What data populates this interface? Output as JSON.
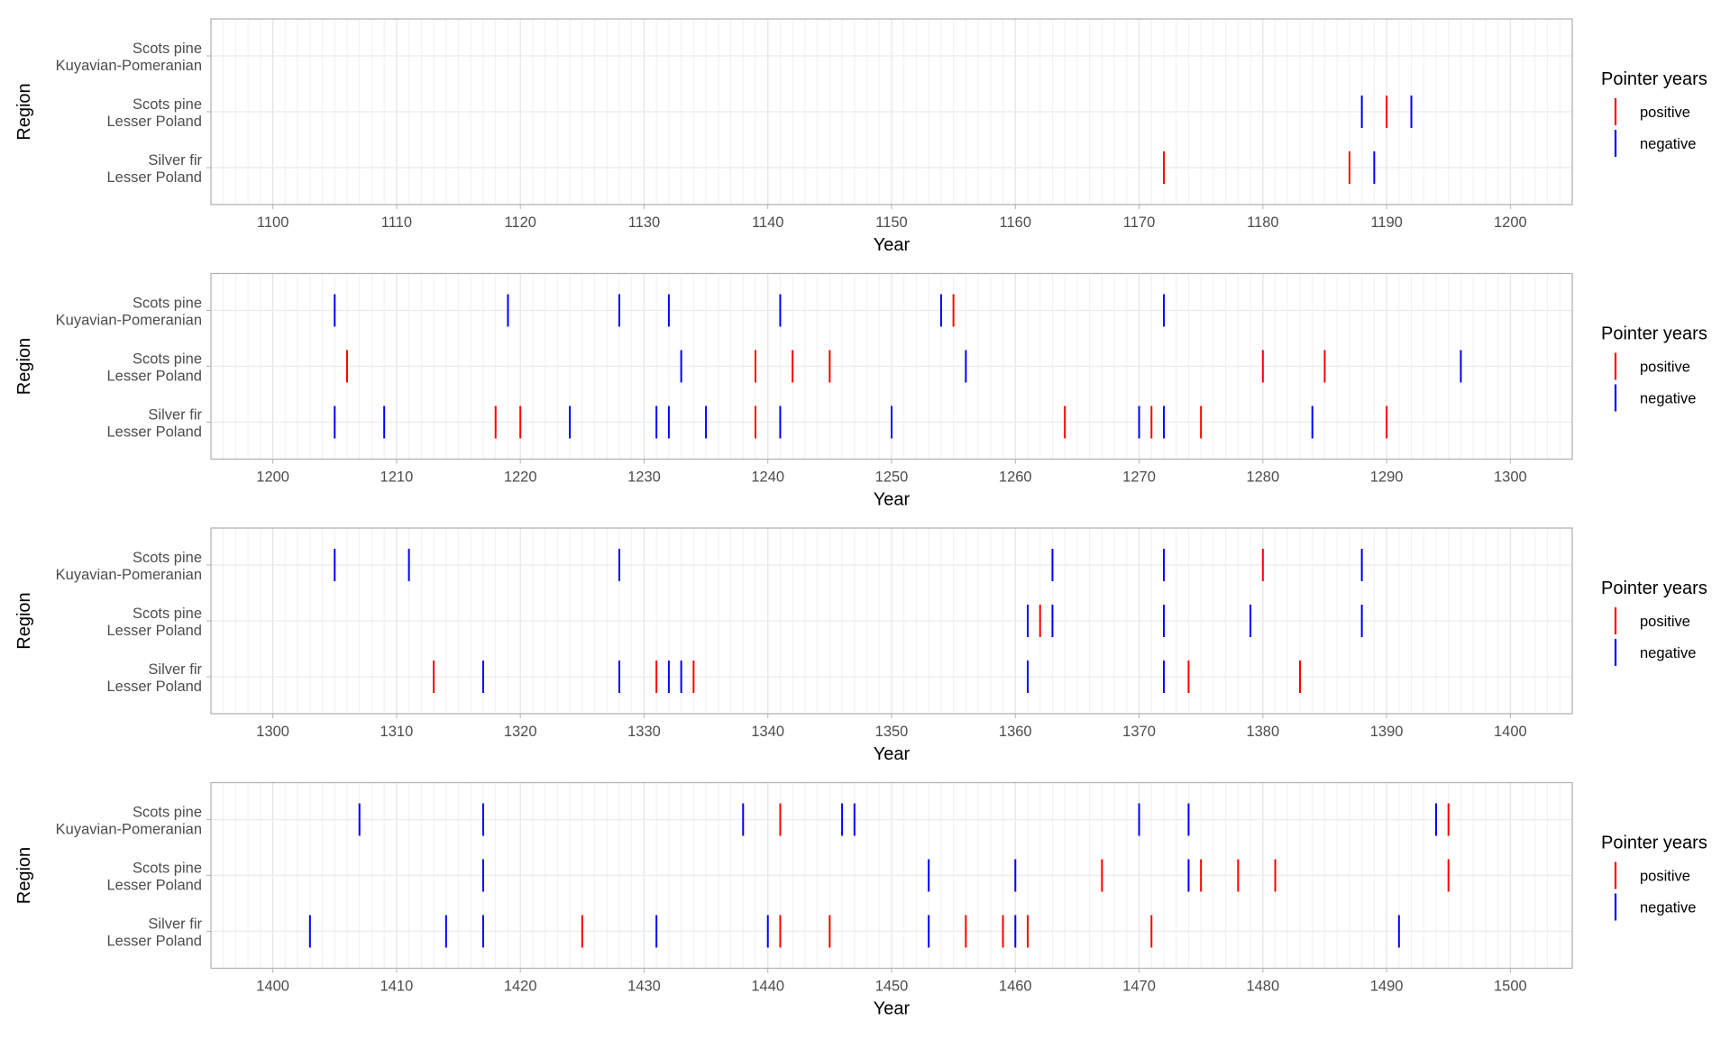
{
  "chart_data": [
    {
      "type": "scatter",
      "title": "",
      "xlabel": "Year",
      "ylabel": "Region",
      "xlim": [
        1095,
        1205
      ],
      "x_ticks": [
        1100,
        1110,
        1120,
        1130,
        1140,
        1150,
        1160,
        1170,
        1180,
        1190,
        1200
      ],
      "categories": [
        [
          "Scots pine",
          "Kuyavian-Pomeranian"
        ],
        [
          "Scots pine",
          "Lesser Poland"
        ],
        [
          "Silver fir",
          "Lesser Poland"
        ]
      ],
      "legend": {
        "title": "Pointer years",
        "position": "right",
        "entries": [
          "positive",
          "negative"
        ]
      },
      "series": [
        {
          "name": "positive",
          "color": "#ff0000",
          "points": [
            {
              "region": 1,
              "year": 1190
            },
            {
              "region": 2,
              "year": 1172
            },
            {
              "region": 2,
              "year": 1187
            }
          ]
        },
        {
          "name": "negative",
          "color": "#0000ff",
          "points": [
            {
              "region": 1,
              "year": 1188
            },
            {
              "region": 1,
              "year": 1192
            },
            {
              "region": 2,
              "year": 1189
            }
          ]
        }
      ]
    },
    {
      "type": "scatter",
      "title": "",
      "xlabel": "Year",
      "ylabel": "Region",
      "xlim": [
        1195,
        1305
      ],
      "x_ticks": [
        1200,
        1210,
        1220,
        1230,
        1240,
        1250,
        1260,
        1270,
        1280,
        1290,
        1300
      ],
      "categories": [
        [
          "Scots pine",
          "Kuyavian-Pomeranian"
        ],
        [
          "Scots pine",
          "Lesser Poland"
        ],
        [
          "Silver fir",
          "Lesser Poland"
        ]
      ],
      "legend": {
        "title": "Pointer years",
        "position": "right",
        "entries": [
          "positive",
          "negative"
        ]
      },
      "series": [
        {
          "name": "positive",
          "color": "#ff0000",
          "points": [
            {
              "region": 0,
              "year": 1255
            },
            {
              "region": 1,
              "year": 1206
            },
            {
              "region": 1,
              "year": 1239
            },
            {
              "region": 1,
              "year": 1242
            },
            {
              "region": 1,
              "year": 1245
            },
            {
              "region": 1,
              "year": 1280
            },
            {
              "region": 1,
              "year": 1285
            },
            {
              "region": 2,
              "year": 1218
            },
            {
              "region": 2,
              "year": 1220
            },
            {
              "region": 2,
              "year": 1239
            },
            {
              "region": 2,
              "year": 1264
            },
            {
              "region": 2,
              "year": 1271
            },
            {
              "region": 2,
              "year": 1275
            },
            {
              "region": 2,
              "year": 1290
            }
          ]
        },
        {
          "name": "negative",
          "color": "#0000ff",
          "points": [
            {
              "region": 0,
              "year": 1205
            },
            {
              "region": 0,
              "year": 1219
            },
            {
              "region": 0,
              "year": 1228
            },
            {
              "region": 0,
              "year": 1232
            },
            {
              "region": 0,
              "year": 1241
            },
            {
              "region": 0,
              "year": 1254
            },
            {
              "region": 0,
              "year": 1272
            },
            {
              "region": 1,
              "year": 1233
            },
            {
              "region": 1,
              "year": 1256
            },
            {
              "region": 1,
              "year": 1296
            },
            {
              "region": 2,
              "year": 1205
            },
            {
              "region": 2,
              "year": 1209
            },
            {
              "region": 2,
              "year": 1224
            },
            {
              "region": 2,
              "year": 1231
            },
            {
              "region": 2,
              "year": 1232
            },
            {
              "region": 2,
              "year": 1235
            },
            {
              "region": 2,
              "year": 1241
            },
            {
              "region": 2,
              "year": 1250
            },
            {
              "region": 2,
              "year": 1270
            },
            {
              "region": 2,
              "year": 1272
            },
            {
              "region": 2,
              "year": 1284
            }
          ]
        }
      ]
    },
    {
      "type": "scatter",
      "title": "",
      "xlabel": "Year",
      "ylabel": "Region",
      "xlim": [
        1295,
        1405
      ],
      "x_ticks": [
        1300,
        1310,
        1320,
        1330,
        1340,
        1350,
        1360,
        1370,
        1380,
        1390,
        1400
      ],
      "categories": [
        [
          "Scots pine",
          "Kuyavian-Pomeranian"
        ],
        [
          "Scots pine",
          "Lesser Poland"
        ],
        [
          "Silver fir",
          "Lesser Poland"
        ]
      ],
      "legend": {
        "title": "Pointer years",
        "position": "right",
        "entries": [
          "positive",
          "negative"
        ]
      },
      "series": [
        {
          "name": "positive",
          "color": "#ff0000",
          "points": [
            {
              "region": 0,
              "year": 1380
            },
            {
              "region": 1,
              "year": 1362
            },
            {
              "region": 2,
              "year": 1313
            },
            {
              "region": 2,
              "year": 1331
            },
            {
              "region": 2,
              "year": 1334
            },
            {
              "region": 2,
              "year": 1374
            },
            {
              "region": 2,
              "year": 1383
            }
          ]
        },
        {
          "name": "negative",
          "color": "#0000ff",
          "points": [
            {
              "region": 0,
              "year": 1305
            },
            {
              "region": 0,
              "year": 1311
            },
            {
              "region": 0,
              "year": 1328
            },
            {
              "region": 0,
              "year": 1363
            },
            {
              "region": 0,
              "year": 1372
            },
            {
              "region": 0,
              "year": 1388
            },
            {
              "region": 1,
              "year": 1361
            },
            {
              "region": 1,
              "year": 1363
            },
            {
              "region": 1,
              "year": 1372
            },
            {
              "region": 1,
              "year": 1379
            },
            {
              "region": 1,
              "year": 1388
            },
            {
              "region": 2,
              "year": 1317
            },
            {
              "region": 2,
              "year": 1328
            },
            {
              "region": 2,
              "year": 1332
            },
            {
              "region": 2,
              "year": 1333
            },
            {
              "region": 2,
              "year": 1361
            },
            {
              "region": 2,
              "year": 1372
            }
          ]
        }
      ]
    },
    {
      "type": "scatter",
      "title": "",
      "xlabel": "Year",
      "ylabel": "Region",
      "xlim": [
        1395,
        1505
      ],
      "x_ticks": [
        1400,
        1410,
        1420,
        1430,
        1440,
        1450,
        1460,
        1470,
        1480,
        1490,
        1500
      ],
      "categories": [
        [
          "Scots pine",
          "Kuyavian-Pomeranian"
        ],
        [
          "Scots pine",
          "Lesser Poland"
        ],
        [
          "Silver fir",
          "Lesser Poland"
        ]
      ],
      "legend": {
        "title": "Pointer years",
        "position": "right",
        "entries": [
          "positive",
          "negative"
        ]
      },
      "series": [
        {
          "name": "positive",
          "color": "#ff0000",
          "points": [
            {
              "region": 0,
              "year": 1441
            },
            {
              "region": 0,
              "year": 1495
            },
            {
              "region": 1,
              "year": 1467
            },
            {
              "region": 1,
              "year": 1475
            },
            {
              "region": 1,
              "year": 1478
            },
            {
              "region": 1,
              "year": 1481
            },
            {
              "region": 1,
              "year": 1495
            },
            {
              "region": 2,
              "year": 1425
            },
            {
              "region": 2,
              "year": 1441
            },
            {
              "region": 2,
              "year": 1445
            },
            {
              "region": 2,
              "year": 1456
            },
            {
              "region": 2,
              "year": 1459
            },
            {
              "region": 2,
              "year": 1461
            },
            {
              "region": 2,
              "year": 1471
            }
          ]
        },
        {
          "name": "negative",
          "color": "#0000ff",
          "points": [
            {
              "region": 0,
              "year": 1407
            },
            {
              "region": 0,
              "year": 1417
            },
            {
              "region": 0,
              "year": 1438
            },
            {
              "region": 0,
              "year": 1446
            },
            {
              "region": 0,
              "year": 1447
            },
            {
              "region": 0,
              "year": 1470
            },
            {
              "region": 0,
              "year": 1474
            },
            {
              "region": 0,
              "year": 1494
            },
            {
              "region": 1,
              "year": 1417
            },
            {
              "region": 1,
              "year": 1453
            },
            {
              "region": 1,
              "year": 1460
            },
            {
              "region": 1,
              "year": 1474
            },
            {
              "region": 2,
              "year": 1403
            },
            {
              "region": 2,
              "year": 1414
            },
            {
              "region": 2,
              "year": 1417
            },
            {
              "region": 2,
              "year": 1431
            },
            {
              "region": 2,
              "year": 1440
            },
            {
              "region": 2,
              "year": 1453
            },
            {
              "region": 2,
              "year": 1460
            },
            {
              "region": 2,
              "year": 1491
            }
          ]
        }
      ]
    }
  ]
}
